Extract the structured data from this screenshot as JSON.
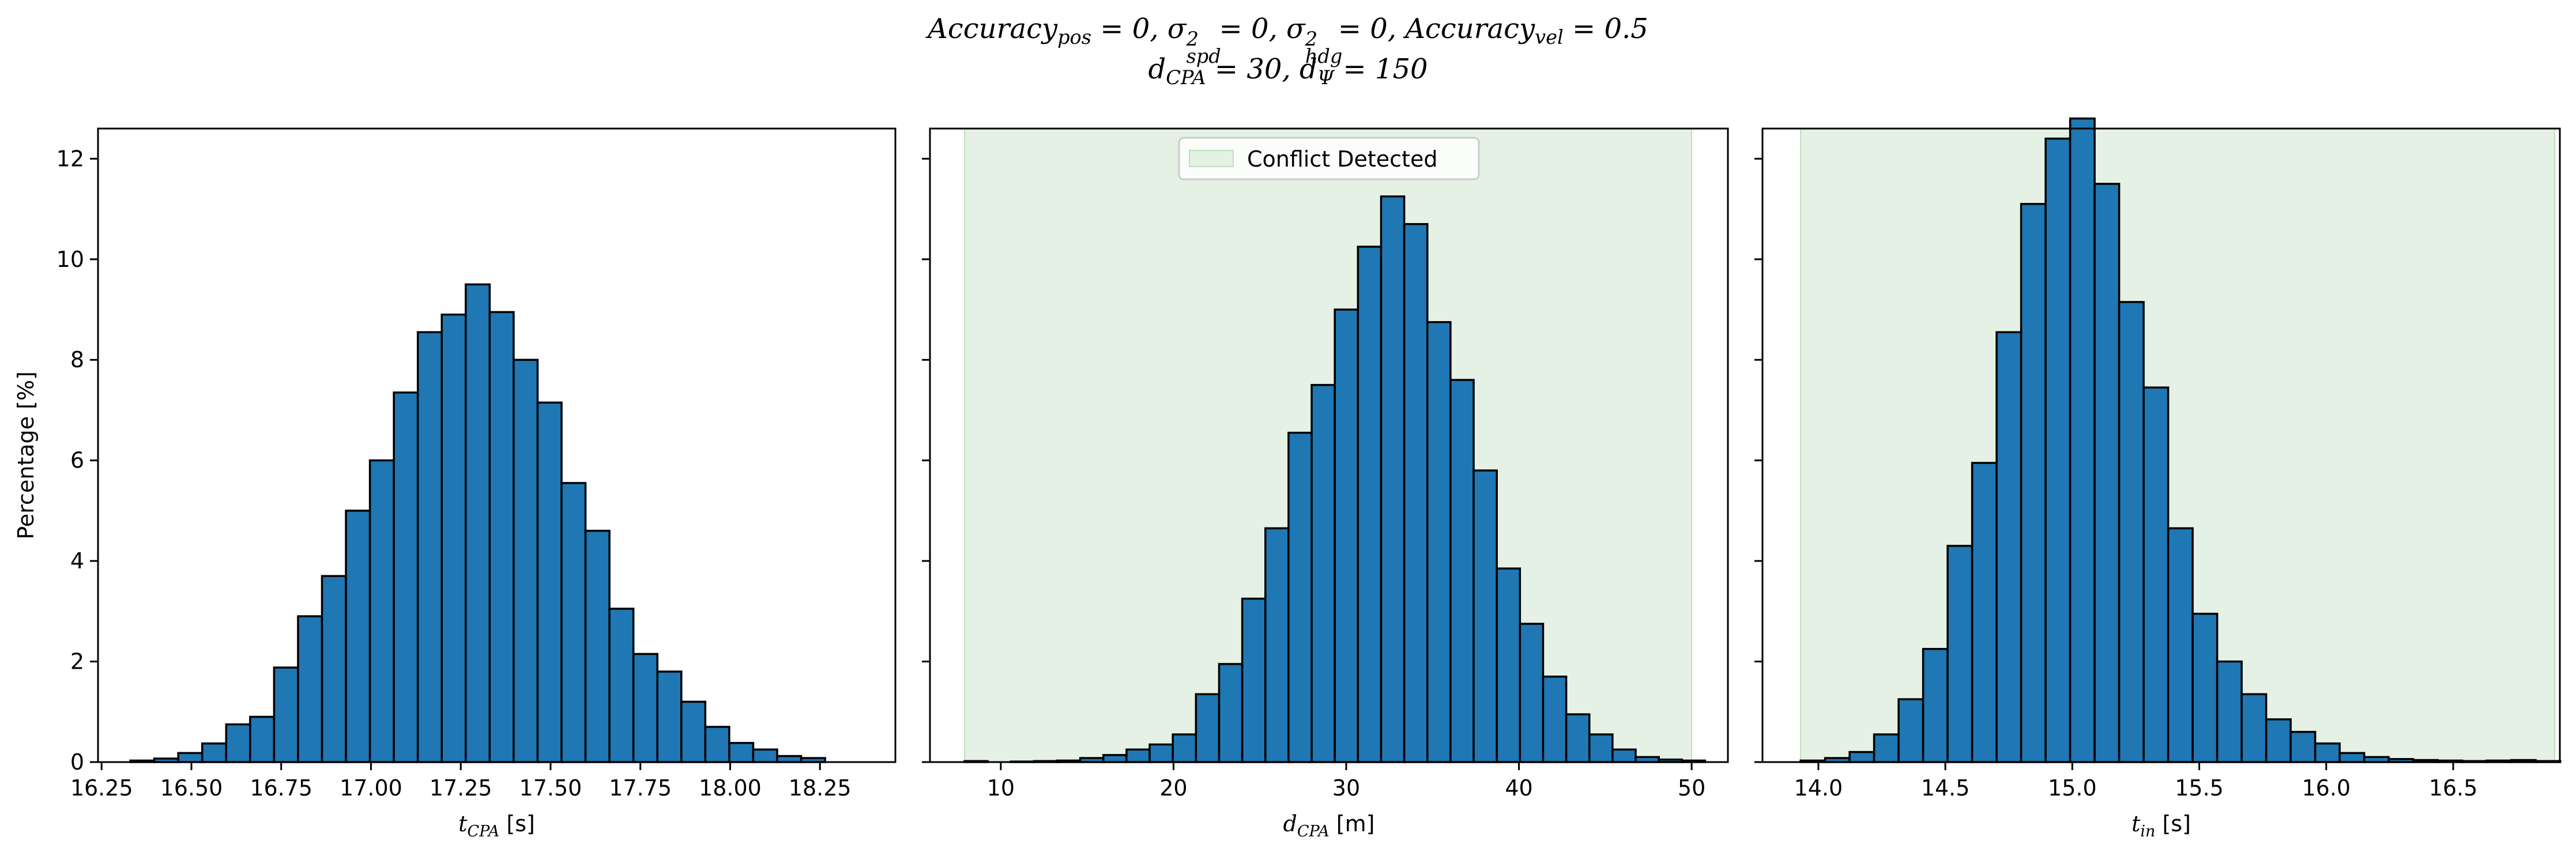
{
  "title": {
    "line1": "Accuracy_pos = 0, σ²_spd = 0, σ²_hdg = 0, Accuracy_vel = 0.5",
    "line2": "d_CPA = 30, d_Ψ = 150"
  },
  "colors": {
    "bar": "#1f77b4",
    "edge": "#000000",
    "band": "#e5f1e4",
    "band_edge": "#bfdfbd"
  },
  "chart_data": [
    {
      "type": "bar",
      "panel": "left",
      "xlabel_main": "t",
      "xlabel_sub": "CPA",
      "xlabel_unit": "[s]",
      "ylabel": "Percentage [%]",
      "xlim": [
        16.24,
        18.46
      ],
      "ylim": [
        0,
        12.6
      ],
      "xticks": [
        16.25,
        16.5,
        16.75,
        17.0,
        17.25,
        17.5,
        17.75,
        18.0,
        18.25
      ],
      "xtick_labels": [
        "16.25",
        "16.50",
        "16.75",
        "17.00",
        "17.25",
        "17.50",
        "17.75",
        "18.00",
        "18.25"
      ],
      "yticks": [
        0,
        2,
        4,
        6,
        8,
        10,
        12
      ],
      "bin_start": 16.33,
      "bin_width": 0.0667,
      "values": [
        0.03,
        0.07,
        0.18,
        0.37,
        0.75,
        0.9,
        1.88,
        2.9,
        3.7,
        5.0,
        6.0,
        7.35,
        8.55,
        8.9,
        9.5,
        8.95,
        8.0,
        7.15,
        5.55,
        4.6,
        3.05,
        2.15,
        1.8,
        1.2,
        0.7,
        0.38,
        0.25,
        0.12,
        0.08
      ],
      "band": null,
      "legend": null
    },
    {
      "type": "bar",
      "panel": "middle",
      "xlabel_main": "d",
      "xlabel_sub": "CPA",
      "xlabel_unit": "[m]",
      "xlim": [
        5.9,
        52.1
      ],
      "ylim": [
        0,
        12.6
      ],
      "xticks": [
        10,
        20,
        30,
        40,
        50
      ],
      "xtick_labels": [
        "10",
        "20",
        "30",
        "40",
        "50"
      ],
      "yticks": [
        0,
        2,
        4,
        6,
        8,
        10,
        12
      ],
      "bin_start": 7.9,
      "bin_width": 1.34,
      "values": [
        0.02,
        0.0,
        0.01,
        0.02,
        0.03,
        0.08,
        0.14,
        0.25,
        0.35,
        0.55,
        1.35,
        1.95,
        3.25,
        4.65,
        6.55,
        7.5,
        9.0,
        10.25,
        11.25,
        10.7,
        8.75,
        7.6,
        5.8,
        3.85,
        2.75,
        1.7,
        0.95,
        0.55,
        0.25,
        0.1,
        0.05,
        0.03
      ],
      "band": [
        7.9,
        50.0
      ],
      "legend": {
        "label": "Conflict Detected",
        "placement": "upper center"
      }
    },
    {
      "type": "bar",
      "panel": "right",
      "xlabel_main": "t",
      "xlabel_sub": "in",
      "xlabel_unit": "[s]",
      "xlim": [
        13.78,
        16.92
      ],
      "ylim": [
        0,
        12.6
      ],
      "xticks": [
        14.0,
        14.5,
        15.0,
        15.5,
        16.0,
        16.5
      ],
      "xtick_labels": [
        "14.0",
        "14.5",
        "15.0",
        "15.5",
        "16.0",
        "16.5"
      ],
      "yticks": [
        0,
        2,
        4,
        6,
        8,
        10,
        12
      ],
      "bin_start": 13.93,
      "bin_width": 0.0965,
      "values": [
        0.03,
        0.08,
        0.2,
        0.55,
        1.25,
        2.25,
        4.3,
        5.95,
        8.55,
        11.1,
        12.4,
        12.8,
        11.5,
        9.15,
        7.45,
        4.65,
        2.95,
        2.0,
        1.35,
        0.85,
        0.6,
        0.37,
        0.18,
        0.1,
        0.06,
        0.04,
        0.03,
        0.02,
        0.03,
        0.04,
        0.02
      ],
      "band": [
        13.93,
        16.9
      ],
      "legend": null
    }
  ]
}
